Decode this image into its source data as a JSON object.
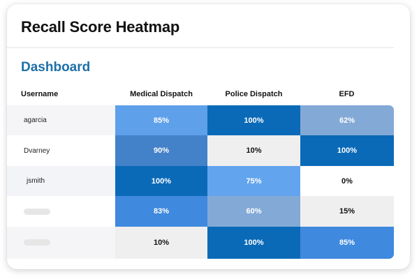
{
  "card": {
    "title": "Recall Score Heatmap"
  },
  "section": {
    "title": "Dashboard"
  },
  "table": {
    "headers": {
      "username": "Username",
      "columns": [
        "Medical Dispatch",
        "Police Dispatch",
        "EFD"
      ]
    },
    "rows": [
      {
        "username": "agarcia",
        "row_bg": "#f5f5f7",
        "cells": [
          {
            "text": "85%",
            "bg": "#5fa0ea",
            "fg": "#ffffff"
          },
          {
            "text": "100%",
            "bg": "#0a6ab8",
            "fg": "#ffffff"
          },
          {
            "text": "62%",
            "bg": "#83a9d6",
            "fg": "#ffffff"
          }
        ]
      },
      {
        "username": "Dvarney",
        "row_bg": "#ffffff",
        "cells": [
          {
            "text": "90%",
            "bg": "#4381c9",
            "fg": "#ffffff"
          },
          {
            "text": "10%",
            "bg": "#efefef",
            "fg": "#111111"
          },
          {
            "text": "100%",
            "bg": "#0a6ab8",
            "fg": "#ffffff"
          }
        ]
      },
      {
        "username": "jsmith",
        "row_bg": "#f2f4f8",
        "cells": [
          {
            "text": "100%",
            "bg": "#0a6ab8",
            "fg": "#ffffff"
          },
          {
            "text": "75%",
            "bg": "#62a5ee",
            "fg": "#ffffff"
          },
          {
            "text": "0%",
            "bg": "#ffffff",
            "fg": "#111111"
          }
        ]
      },
      {
        "username": "",
        "row_bg": "#ffffff",
        "cells": [
          {
            "text": "83%",
            "bg": "#3f89de",
            "fg": "#ffffff"
          },
          {
            "text": "60%",
            "bg": "#83a9d6",
            "fg": "#ffffff"
          },
          {
            "text": "15%",
            "bg": "#efefef",
            "fg": "#111111"
          }
        ]
      },
      {
        "username": "",
        "row_bg": "#f5f5f7",
        "cells": [
          {
            "text": "10%",
            "bg": "#efefef",
            "fg": "#111111"
          },
          {
            "text": "100%",
            "bg": "#0a6ab8",
            "fg": "#ffffff"
          },
          {
            "text": "85%",
            "bg": "#3f89de",
            "fg": "#ffffff"
          }
        ]
      }
    ]
  }
}
